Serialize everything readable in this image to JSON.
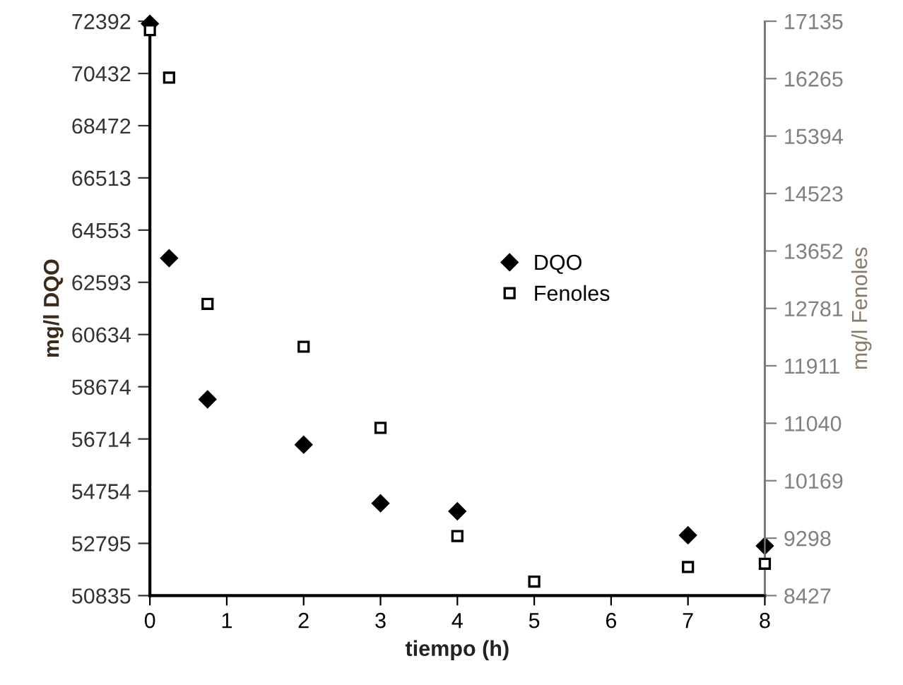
{
  "chart_data": {
    "type": "scatter",
    "xlabel": "tiempo (h)",
    "ylabel": "mg/l DQO",
    "y2label": "mg/l Fenoles",
    "xlim": [
      0,
      8
    ],
    "xticks": [
      0,
      1,
      2,
      3,
      4,
      5,
      6,
      7,
      8
    ],
    "ylim": [
      50835,
      72392
    ],
    "yticks": [
      50835,
      52795,
      54754,
      56714,
      58674,
      60634,
      62593,
      64553,
      66513,
      68472,
      70432,
      72392
    ],
    "y2lim": [
      8427,
      17135
    ],
    "y2ticks": [
      8427,
      9298,
      10169,
      11040,
      11911,
      12781,
      13652,
      14523,
      15394,
      16265,
      17135
    ],
    "grid": false,
    "legend": "right",
    "series": [
      {
        "name": "DQO",
        "color": "#000000",
        "marker": "diamond",
        "x": [
          0,
          0.25,
          0.75,
          2,
          3,
          4,
          7,
          8
        ],
        "values": [
          72300,
          63500,
          58200,
          56500,
          54300,
          54000,
          53100,
          52700
        ]
      },
      {
        "name": "Fenoles",
        "color": "#000000",
        "marker": "square",
        "axis": "y2",
        "x": [
          0,
          0.25,
          0.75,
          2,
          3,
          4,
          5,
          7,
          8
        ],
        "values": [
          17000,
          16280,
          12850,
          12200,
          10970,
          9330,
          8640,
          8860,
          8910
        ]
      }
    ]
  }
}
